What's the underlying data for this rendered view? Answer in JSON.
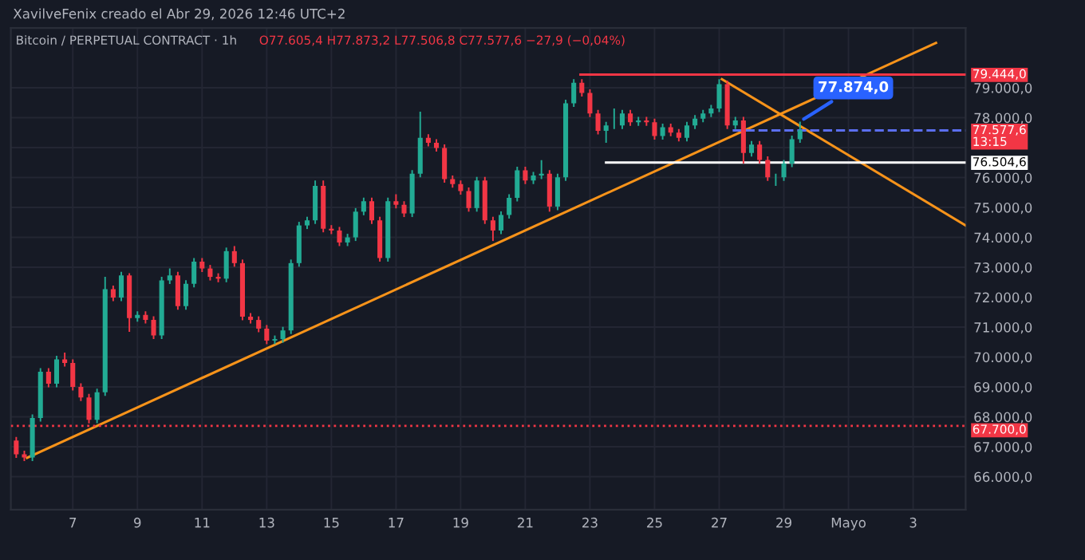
{
  "chart_data": {
    "type": "candlestick",
    "title": "Bitcoin / PERPETUAL CONTRACT · 1h",
    "subtitle": "O77.605,4 H77.873,2 L77.506,8 C77.577,6 −27,9 (−0,04%)",
    "annotations": [
      "XavilveFenix creado el Abr 29, 2026 12:46 UTC+2",
      {
        "text": "77.874,0",
        "x": "2026-04-29T12:00",
        "y": 77874
      },
      {
        "text": "79.444,0",
        "x": "2026-05-04T15:00",
        "y": 79444
      },
      {
        "text": "77.577,6\n13:15",
        "x": "2026-05-04T15:00",
        "y": 77577.6
      },
      {
        "text": "76.504,6",
        "x": "2026-05-04T15:00",
        "y": 76504.6
      }
    ],
    "x": [
      "2026-04-05T06:00",
      "2026-04-05T12:00",
      "2026-04-05T18:00",
      "2026-04-06T00:00",
      "2026-04-06T06:00",
      "2026-04-06T12:00",
      "2026-04-06T18:00",
      "2026-04-07T00:00",
      "2026-04-07T06:00",
      "2026-04-07T12:00",
      "2026-04-07T18:00",
      "2026-04-08T00:00",
      "2026-04-08T06:00",
      "2026-04-08T12:00",
      "2026-04-08T18:00",
      "2026-04-09T00:00",
      "2026-04-09T06:00",
      "2026-04-09T12:00",
      "2026-04-09T18:00",
      "2026-04-10T00:00",
      "2026-04-10T06:00",
      "2026-04-10T12:00",
      "2026-04-10T18:00",
      "2026-04-11T00:00",
      "2026-04-11T06:00",
      "2026-04-11T12:00",
      "2026-04-11T18:00",
      "2026-04-12T00:00",
      "2026-04-12T06:00",
      "2026-04-12T12:00",
      "2026-04-12T18:00",
      "2026-04-13T00:00",
      "2026-04-13T06:00",
      "2026-04-13T12:00",
      "2026-04-13T18:00",
      "2026-04-14T00:00",
      "2026-04-14T06:00",
      "2026-04-14T12:00",
      "2026-04-14T18:00",
      "2026-04-15T00:00",
      "2026-04-15T06:00",
      "2026-04-15T12:00",
      "2026-04-15T18:00",
      "2026-04-16T00:00",
      "2026-04-16T06:00",
      "2026-04-16T12:00",
      "2026-04-16T18:00",
      "2026-04-17T00:00",
      "2026-04-17T06:00",
      "2026-04-17T12:00",
      "2026-04-17T18:00",
      "2026-04-18T00:00",
      "2026-04-18T06:00",
      "2026-04-18T12:00",
      "2026-04-18T18:00",
      "2026-04-19T00:00",
      "2026-04-19T06:00",
      "2026-04-19T12:00",
      "2026-04-19T18:00",
      "2026-04-20T00:00",
      "2026-04-20T06:00",
      "2026-04-20T12:00",
      "2026-04-20T18:00",
      "2026-04-21T00:00",
      "2026-04-21T06:00",
      "2026-04-21T12:00",
      "2026-04-21T18:00",
      "2026-04-22T00:00",
      "2026-04-22T06:00",
      "2026-04-22T12:00",
      "2026-04-22T18:00",
      "2026-04-23T00:00",
      "2026-04-23T06:00",
      "2026-04-23T12:00",
      "2026-04-23T18:00",
      "2026-04-24T00:00",
      "2026-04-24T06:00",
      "2026-04-24T12:00",
      "2026-04-24T18:00",
      "2026-04-25T00:00",
      "2026-04-25T06:00",
      "2026-04-25T12:00",
      "2026-04-25T18:00",
      "2026-04-26T00:00",
      "2026-04-26T06:00",
      "2026-04-26T12:00",
      "2026-04-26T18:00",
      "2026-04-27T00:00",
      "2026-04-27T06:00",
      "2026-04-27T12:00",
      "2026-04-27T18:00",
      "2026-04-28T00:00",
      "2026-04-28T06:00",
      "2026-04-28T12:00",
      "2026-04-28T18:00",
      "2026-04-29T00:00",
      "2026-04-29T06:00",
      "2026-04-29T12:00"
    ],
    "ohlc": [
      [
        67210,
        67330,
        66630,
        66750
      ],
      [
        66750,
        66870,
        66520,
        66640
      ],
      [
        66640,
        68080,
        66520,
        67960
      ],
      [
        67960,
        69630,
        67840,
        69510
      ],
      [
        69510,
        69630,
        68990,
        69110
      ],
      [
        69110,
        70040,
        68990,
        69920
      ],
      [
        69920,
        70150,
        69680,
        69800
      ],
      [
        69800,
        69920,
        68880,
        69000
      ],
      [
        69000,
        69120,
        68530,
        68650
      ],
      [
        68650,
        68770,
        67780,
        67900
      ],
      [
        67900,
        68940,
        67790,
        68820
      ],
      [
        68820,
        72680,
        68700,
        72270
      ],
      [
        72270,
        72390,
        71870,
        71990
      ],
      [
        71990,
        72850,
        71870,
        72730
      ],
      [
        72730,
        72800,
        70840,
        71300
      ],
      [
        71300,
        71530,
        71180,
        71410
      ],
      [
        71410,
        71530,
        71120,
        71240
      ],
      [
        71240,
        71360,
        70600,
        70720
      ],
      [
        70720,
        72680,
        70600,
        72560
      ],
      [
        72560,
        72960,
        72440,
        72730
      ],
      [
        72730,
        72850,
        71580,
        71700
      ],
      [
        71700,
        72570,
        71580,
        72450
      ],
      [
        72450,
        73310,
        72330,
        73190
      ],
      [
        73190,
        73310,
        72840,
        72960
      ],
      [
        72960,
        73080,
        72560,
        72680
      ],
      [
        72680,
        72800,
        72500,
        72620
      ],
      [
        72620,
        73660,
        72500,
        73540
      ],
      [
        73540,
        73710,
        73020,
        73140
      ],
      [
        73140,
        73260,
        71230,
        71350
      ],
      [
        71350,
        71470,
        71120,
        71240
      ],
      [
        71240,
        71360,
        70830,
        70950
      ],
      [
        70950,
        71070,
        70430,
        70550
      ],
      [
        70550,
        70720,
        70430,
        70600
      ],
      [
        70600,
        71010,
        70480,
        70890
      ],
      [
        70890,
        73260,
        70770,
        73140
      ],
      [
        73140,
        74520,
        73020,
        74400
      ],
      [
        74400,
        74690,
        74280,
        74570
      ],
      [
        74570,
        75900,
        74450,
        75720
      ],
      [
        75720,
        75900,
        74170,
        74290
      ],
      [
        74290,
        74410,
        74110,
        74230
      ],
      [
        74230,
        74350,
        73710,
        73830
      ],
      [
        73830,
        74120,
        73710,
        74000
      ],
      [
        74000,
        74980,
        73880,
        74860
      ],
      [
        74860,
        75330,
        74740,
        75210
      ],
      [
        75210,
        75330,
        74450,
        74570
      ],
      [
        74570,
        74690,
        73190,
        73310
      ],
      [
        73310,
        75330,
        73190,
        75210
      ],
      [
        75210,
        75440,
        74970,
        75090
      ],
      [
        75090,
        75210,
        74680,
        74800
      ],
      [
        74800,
        76250,
        74680,
        76130
      ],
      [
        76130,
        78200,
        76010,
        77330
      ],
      [
        77330,
        77450,
        77040,
        77160
      ],
      [
        77160,
        77280,
        76870,
        76990
      ],
      [
        76990,
        77110,
        75830,
        75950
      ],
      [
        75950,
        76070,
        75660,
        75780
      ],
      [
        75780,
        75900,
        75430,
        75550
      ],
      [
        75550,
        75670,
        74860,
        74980
      ],
      [
        74980,
        76020,
        74860,
        75900
      ],
      [
        75900,
        76020,
        74450,
        74570
      ],
      [
        74570,
        74690,
        73880,
        74230
      ],
      [
        74230,
        74870,
        74110,
        74750
      ],
      [
        74750,
        75440,
        74630,
        75320
      ],
      [
        75320,
        76360,
        75200,
        76240
      ],
      [
        76240,
        76360,
        75780,
        75900
      ],
      [
        75900,
        76190,
        75780,
        76070
      ],
      [
        76070,
        76580,
        75950,
        76130
      ],
      [
        76130,
        76250,
        74860,
        75030
      ],
      [
        75030,
        76130,
        74910,
        76010
      ],
      [
        76010,
        78600,
        75890,
        78480
      ],
      [
        78480,
        79290,
        78360,
        79170
      ],
      [
        79170,
        79290,
        78710,
        78830
      ],
      [
        78830,
        78950,
        78020,
        78140
      ],
      [
        78140,
        78260,
        77440,
        77560
      ],
      [
        77560,
        77860,
        77160,
        77740
      ],
      [
        77740,
        78310,
        77620,
        77740
      ],
      [
        77740,
        78260,
        77620,
        78140
      ],
      [
        78140,
        78260,
        77730,
        77850
      ],
      [
        77850,
        78030,
        77730,
        77910
      ],
      [
        77910,
        78030,
        77730,
        77850
      ],
      [
        77850,
        77970,
        77270,
        77390
      ],
      [
        77390,
        77800,
        77270,
        77680
      ],
      [
        77680,
        77800,
        77380,
        77500
      ],
      [
        77500,
        77620,
        77210,
        77330
      ],
      [
        77330,
        77860,
        77210,
        77740
      ],
      [
        77740,
        78090,
        77620,
        77970
      ],
      [
        77970,
        78260,
        77850,
        78140
      ],
      [
        78140,
        78430,
        78020,
        78310
      ],
      [
        78310,
        79290,
        78190,
        79120
      ],
      [
        79120,
        79240,
        77620,
        77740
      ],
      [
        77740,
        78030,
        77620,
        77910
      ],
      [
        77910,
        78030,
        76470,
        76820
      ],
      [
        76820,
        77220,
        76700,
        77100
      ],
      [
        77100,
        77220,
        76470,
        76590
      ],
      [
        76590,
        76710,
        75890,
        76010
      ],
      [
        76010,
        76130,
        75720,
        76010
      ],
      [
        76010,
        76590,
        75890,
        76470
      ],
      [
        76470,
        77400,
        76350,
        77280
      ],
      [
        77280,
        77870,
        77160,
        77580
      ]
    ],
    "colors": [
      "#f23645",
      "#f23645",
      "#22ab94",
      "#22ab94",
      "#f23645",
      "#22ab94",
      "#f23645",
      "#f23645",
      "#f23645",
      "#f23645",
      "#22ab94",
      "#22ab94",
      "#f23645",
      "#22ab94",
      "#f23645",
      "#22ab94",
      "#f23645",
      "#f23645",
      "#22ab94",
      "#22ab94",
      "#f23645",
      "#22ab94",
      "#22ab94",
      "#f23645",
      "#f23645",
      "#f23645",
      "#22ab94",
      "#f23645",
      "#f23645",
      "#f23645",
      "#f23645",
      "#f23645",
      "#22ab94",
      "#22ab94",
      "#22ab94",
      "#22ab94",
      "#22ab94",
      "#22ab94",
      "#f23645",
      "#f23645",
      "#f23645",
      "#22ab94",
      "#22ab94",
      "#22ab94",
      "#f23645",
      "#f23645",
      "#22ab94",
      "#f23645",
      "#f23645",
      "#22ab94",
      "#22ab94",
      "#f23645",
      "#f23645",
      "#f23645",
      "#f23645",
      "#f23645",
      "#f23645",
      "#22ab94",
      "#f23645",
      "#f23645",
      "#22ab94",
      "#22ab94",
      "#22ab94",
      "#f23645",
      "#22ab94",
      "#22ab94",
      "#f23645",
      "#22ab94",
      "#22ab94",
      "#22ab94",
      "#f23645",
      "#f23645",
      "#f23645",
      "#22ab94",
      "#22ab94",
      "#22ab94",
      "#f23645",
      "#22ab94",
      "#f23645",
      "#f23645",
      "#22ab94",
      "#f23645",
      "#f23645",
      "#22ab94",
      "#22ab94",
      "#22ab94",
      "#22ab94",
      "#22ab94",
      "#f23645",
      "#22ab94",
      "#f23645",
      "#22ab94",
      "#f23645",
      "#f23645",
      "#22ab94",
      "#22ab94",
      "#22ab94",
      "#22ab94"
    ],
    "series": [
      {
        "type": "line",
        "color": "#f7931a",
        "x": [
          "2026-04-05T14:00",
          "2026-05-03T17:00"
        ],
        "values": [
          66630,
          80500
        ]
      },
      {
        "type": "line",
        "color": "#f7931a",
        "x": [
          "2026-04-27T02:00",
          "2026-05-04T15:00"
        ],
        "values": [
          79290,
          74400
        ]
      },
      {
        "type": "line",
        "color": "#f23645",
        "x": [
          "2026-04-22T17:00",
          "2026-05-04T15:00"
        ],
        "values": [
          79444,
          79444
        ]
      },
      {
        "type": "line",
        "color": "#ffffff",
        "x": [
          "2026-04-23T12:00",
          "2026-05-04T15:00"
        ],
        "values": [
          76504.6,
          76504.6
        ]
      },
      {
        "type": "line",
        "color": "#5b6ef0",
        "line_style": "dashed",
        "x": [
          "2026-04-27T10:00",
          "2026-05-04T15:00"
        ],
        "values": [
          77577.6,
          77577.6
        ]
      }
    ],
    "ref_lines": [
      {
        "axis": "y",
        "value": 67700,
        "label": "67.700,0",
        "color": "#f23645",
        "line_style": "dotted"
      }
    ],
    "xlim": [
      "2026-04-05T02:00",
      "2026-05-04T15:00"
    ],
    "ylim": [
      64900,
      81000
    ],
    "xticks": [
      {
        "value": "2026-04-07",
        "label": "7"
      },
      {
        "value": "2026-04-09",
        "label": "9"
      },
      {
        "value": "2026-04-11",
        "label": "11"
      },
      {
        "value": "2026-04-13",
        "label": "13"
      },
      {
        "value": "2026-04-15",
        "label": "15"
      },
      {
        "value": "2026-04-17",
        "label": "17"
      },
      {
        "value": "2026-04-19",
        "label": "19"
      },
      {
        "value": "2026-04-21",
        "label": "21"
      },
      {
        "value": "2026-04-23",
        "label": "23"
      },
      {
        "value": "2026-04-25",
        "label": "25"
      },
      {
        "value": "2026-04-27",
        "label": "27"
      },
      {
        "value": "2026-04-29",
        "label": "29"
      },
      {
        "value": "2026-05-01",
        "label": "Mayo"
      },
      {
        "value": "2026-05-03",
        "label": "3"
      }
    ],
    "yticks": [
      {
        "value": 66000,
        "label": "66.000,0"
      },
      {
        "value": 67000,
        "label": "67.000,0"
      },
      {
        "value": 68000,
        "label": "68.000,0"
      },
      {
        "value": 69000,
        "label": "69.000,0"
      },
      {
        "value": 70000,
        "label": "70.000,0"
      },
      {
        "value": 71000,
        "label": "71.000,0"
      },
      {
        "value": 72000,
        "label": "72.000,0"
      },
      {
        "value": 73000,
        "label": "73.000,0"
      },
      {
        "value": 74000,
        "label": "74.000,0"
      },
      {
        "value": 75000,
        "label": "75.000,0"
      },
      {
        "value": 76000,
        "label": "76.000,0"
      },
      {
        "value": 77000,
        "label": null
      },
      {
        "value": 78000,
        "label": "78.000,0"
      },
      {
        "value": 79000,
        "label": "79.000,0"
      }
    ],
    "grid": true
  }
}
